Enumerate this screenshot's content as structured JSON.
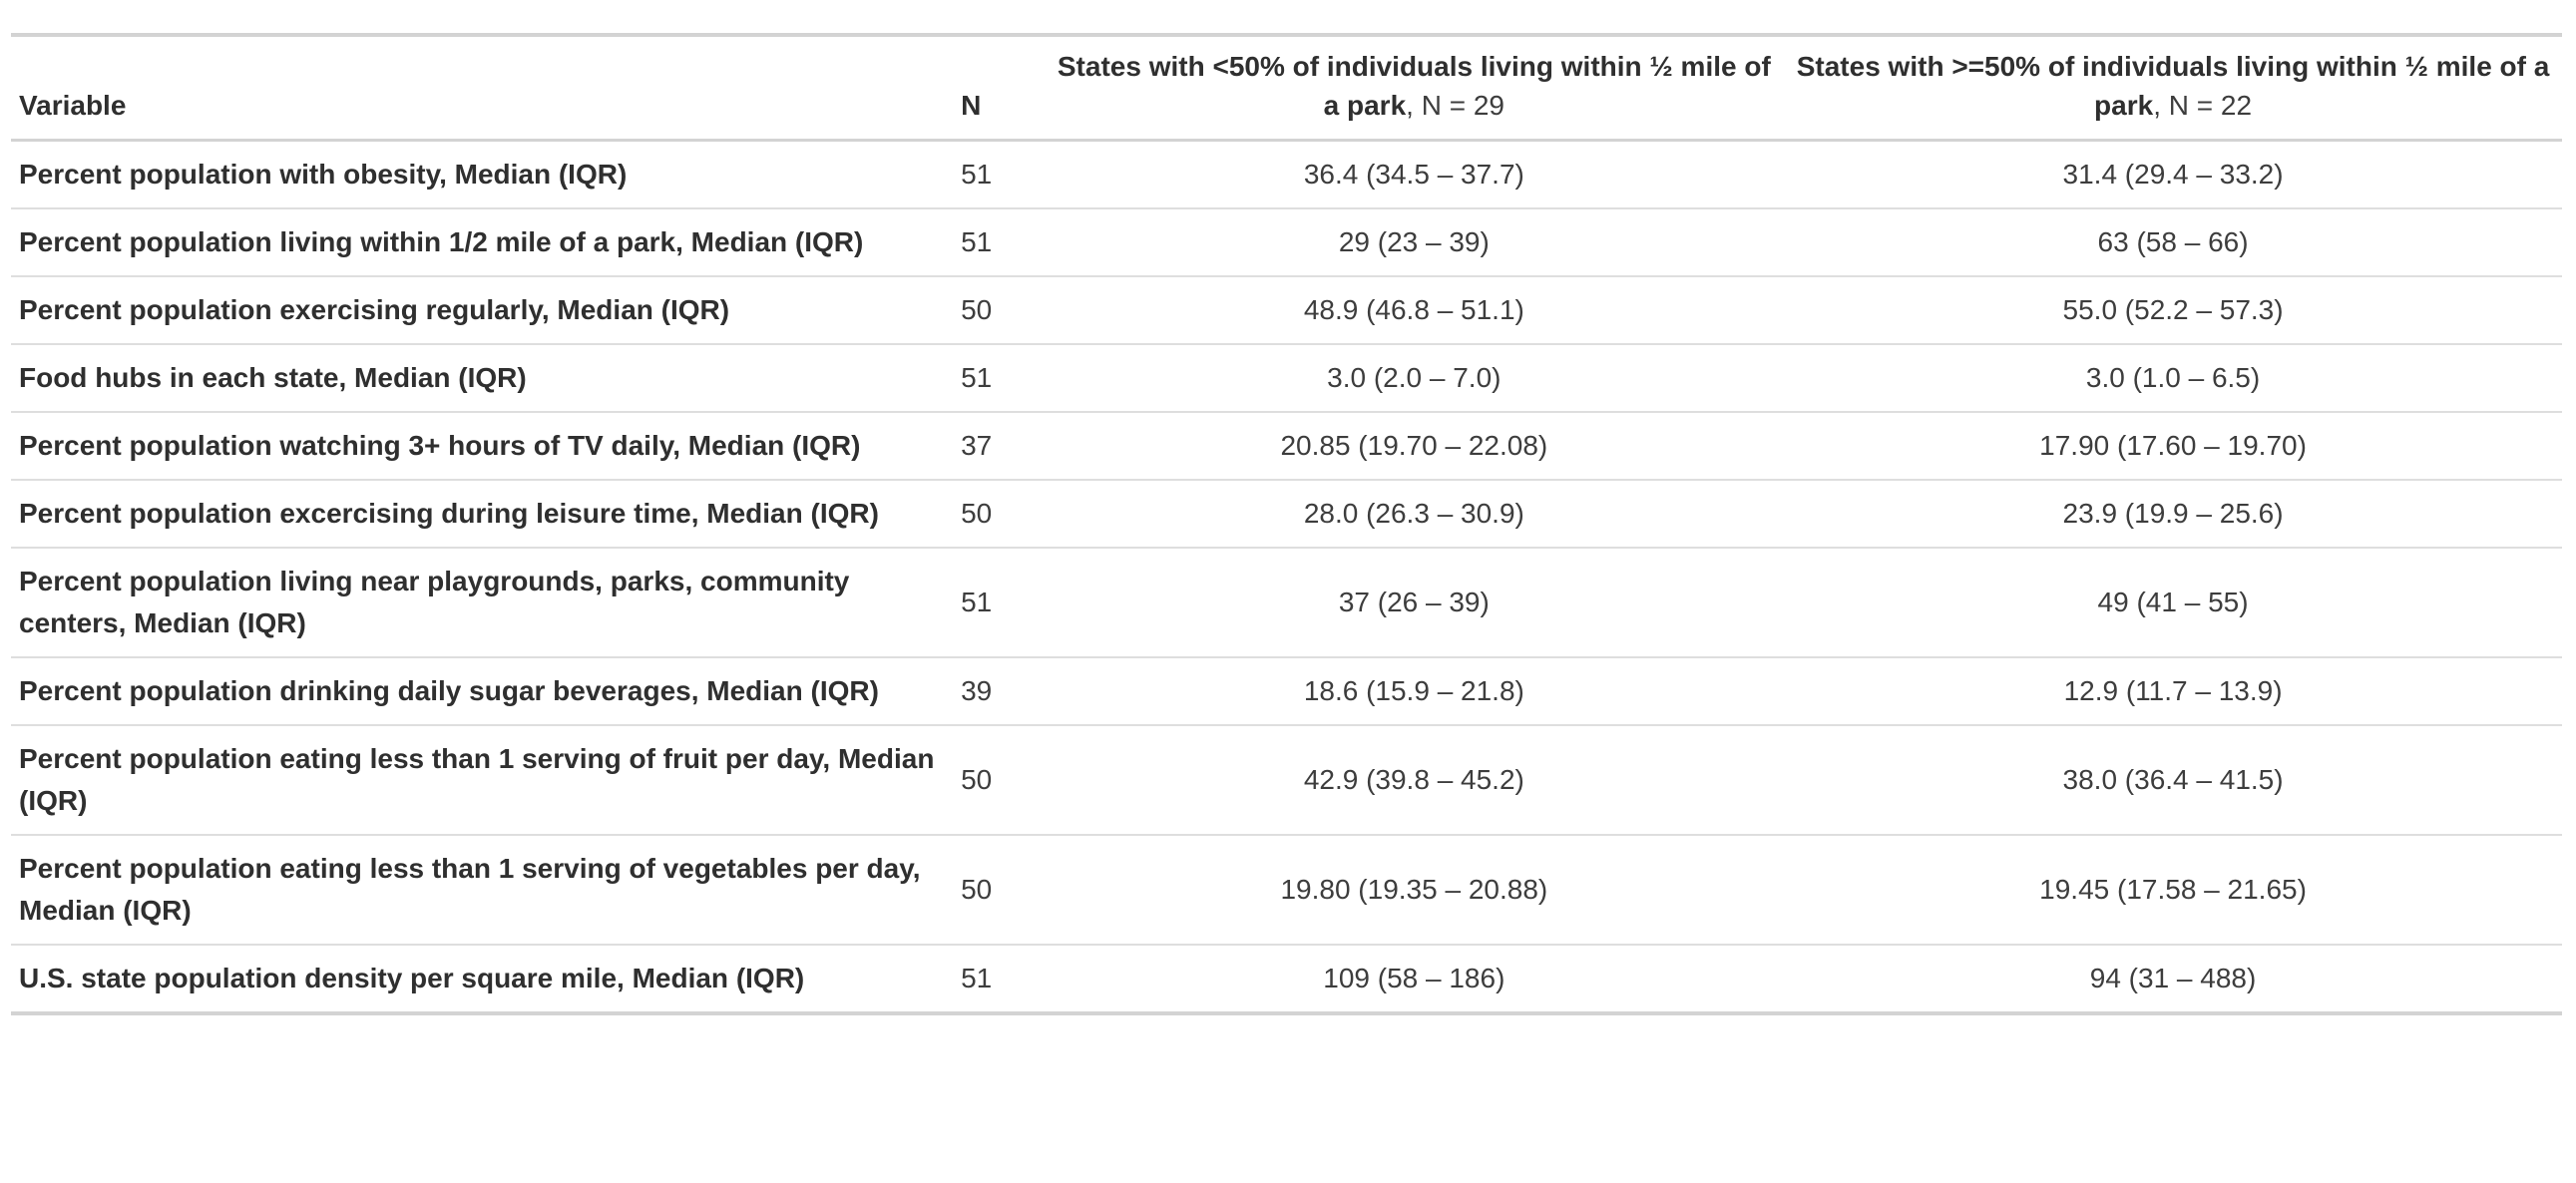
{
  "table": {
    "header": {
      "variable_label": "Variable",
      "n_label": "N",
      "group1_title": "States with <50% of individuals living within ½ mile of a park",
      "group1_n": ", N = 29",
      "group2_title": "States with >=50% of individuals living within ½ mile of a park",
      "group2_n": ", N = 22"
    },
    "rows": [
      {
        "variable": "Percent population with obesity, Median (IQR)",
        "n": "51",
        "group1": "36.4 (34.5 – 37.7)",
        "group2": "31.4 (29.4 – 33.2)"
      },
      {
        "variable": "Percent population living within 1/2 mile of a park, Median (IQR)",
        "n": "51",
        "group1": "29 (23 – 39)",
        "group2": "63 (58 – 66)"
      },
      {
        "variable": "Percent population exercising regularly, Median (IQR)",
        "n": "50",
        "group1": "48.9 (46.8 – 51.1)",
        "group2": "55.0 (52.2 – 57.3)"
      },
      {
        "variable": "Food hubs in each state, Median (IQR)",
        "n": "51",
        "group1": "3.0 (2.0 – 7.0)",
        "group2": "3.0 (1.0 – 6.5)"
      },
      {
        "variable": "Percent population watching 3+ hours of TV daily, Median (IQR)",
        "n": "37",
        "group1": "20.85 (19.70 – 22.08)",
        "group2": "17.90 (17.60 – 19.70)"
      },
      {
        "variable": "Percent population excercising during leisure time, Median (IQR)",
        "n": "50",
        "group1": "28.0 (26.3 – 30.9)",
        "group2": "23.9 (19.9 – 25.6)"
      },
      {
        "variable": "Percent population living near playgrounds, parks, community centers, Median (IQR)",
        "n": "51",
        "group1": "37 (26 – 39)",
        "group2": "49 (41 – 55)"
      },
      {
        "variable": "Percent population drinking daily sugar beverages, Median (IQR)",
        "n": "39",
        "group1": "18.6 (15.9 – 21.8)",
        "group2": "12.9 (11.7 – 13.9)"
      },
      {
        "variable": "Percent population eating less than 1 serving of fruit per day, Median (IQR)",
        "n": "50",
        "group1": "42.9 (39.8 – 45.2)",
        "group2": "38.0 (36.4 – 41.5)"
      },
      {
        "variable": "Percent population eating less than 1 serving of vegetables per day, Median (IQR)",
        "n": "50",
        "group1": "19.80 (19.35 – 20.88)",
        "group2": "19.45 (17.58 – 21.65)"
      },
      {
        "variable": "U.S. state population density per square mile, Median (IQR)",
        "n": "51",
        "group1": "109 (58 – 186)",
        "group2": "94 (31 – 488)"
      }
    ],
    "colors": {
      "background": "#ffffff",
      "text_bold": "#2f2f2f",
      "text_regular": "#3d3d3d",
      "border_strong": "#d3d3d3",
      "border_light": "#dedede"
    }
  }
}
